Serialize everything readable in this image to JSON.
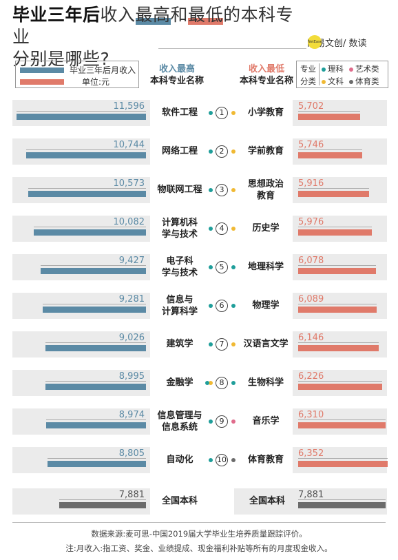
{
  "title": {
    "bold": "毕业三年后",
    "part1": "收入",
    "hl1": "最高",
    "part2": "和",
    "hl2": "最低",
    "part3": "的本科专业",
    "line2": "分别是哪些?"
  },
  "brand": {
    "left": "网易文创",
    "dot": "NetEase",
    "right": "/ 数读"
  },
  "legend": {
    "series_label": "毕业三年后月收入",
    "unit_label": "单位:元"
  },
  "headers": {
    "high_1": "收入最高",
    "high_2": "本科专业名称",
    "low_1": "收入最低",
    "low_2": "本科专业名称"
  },
  "category_legend": {
    "label_1": "专业",
    "label_2": "分类",
    "items": [
      {
        "name": "理科",
        "color": "#1f9e9a"
      },
      {
        "name": "艺术类",
        "color": "#e06c8c"
      },
      {
        "name": "文科",
        "color": "#f0b933"
      },
      {
        "name": "体育类",
        "color": "#6b6b6b"
      }
    ]
  },
  "colors": {
    "high": "#5b8aa5",
    "low": "#e07a6a",
    "national": "#6b6b6b",
    "panel": "#ebebeb"
  },
  "chart_data": {
    "type": "bar",
    "title": "毕业三年后收入最高和最低的本科专业分别是哪些?",
    "unit": "元",
    "ranks": [
      "1",
      "2",
      "3",
      "4",
      "5",
      "6",
      "7",
      "8",
      "9",
      "10"
    ],
    "highest": [
      {
        "name": "软件工程",
        "value": 11596,
        "value_label": "11,596",
        "category": "理科"
      },
      {
        "name": "网络工程",
        "value": 10744,
        "value_label": "10,744",
        "category": "理科"
      },
      {
        "name": "物联网工程",
        "value": 10573,
        "value_label": "10,573",
        "category": "理科"
      },
      {
        "name": "计算机科学与技术",
        "value": 10082,
        "value_label": "10,082",
        "category": "理科"
      },
      {
        "name": "电子科学与技术",
        "value": 9427,
        "value_label": "9,427",
        "category": "理科"
      },
      {
        "name": "信息与计算科学",
        "value": 9281,
        "value_label": "9,281",
        "category": "理科"
      },
      {
        "name": "建筑学",
        "value": 9026,
        "value_label": "9,026",
        "category": "理科"
      },
      {
        "name": "金融学",
        "value": 8995,
        "value_label": "8,995",
        "category": "文科"
      },
      {
        "name": "信息管理与信息系统",
        "value": 8974,
        "value_label": "8,974",
        "category": "理科"
      },
      {
        "name": "自动化",
        "value": 8805,
        "value_label": "8,805",
        "category": "理科"
      }
    ],
    "lowest": [
      {
        "name": "小学教育",
        "value": 5702,
        "value_label": "5,702",
        "category": "文科"
      },
      {
        "name": "学前教育",
        "value": 5746,
        "value_label": "5,746",
        "category": "文科"
      },
      {
        "name": "思想政治教育",
        "value": 5916,
        "value_label": "5,916",
        "category": "文科"
      },
      {
        "name": "历史学",
        "value": 5976,
        "value_label": "5,976",
        "category": "文科"
      },
      {
        "name": "地理科学",
        "value": 6078,
        "value_label": "6,078",
        "category": "理科"
      },
      {
        "name": "物理学",
        "value": 6089,
        "value_label": "6,089",
        "category": "理科"
      },
      {
        "name": "汉语言文学",
        "value": 6146,
        "value_label": "6,146",
        "category": "文科"
      },
      {
        "name": "生物科学",
        "value": 6226,
        "value_label": "6,226",
        "category": "理科"
      },
      {
        "name": "音乐学",
        "value": 6310,
        "value_label": "6,310",
        "category": "艺术类"
      },
      {
        "name": "体育教育",
        "value": 6352,
        "value_label": "6,352",
        "category": "体育类"
      }
    ],
    "national": {
      "name": "全国本科",
      "value": 7881,
      "value_label": "7,881"
    }
  },
  "footer": {
    "source": "数据来源:麦可思-中国2019届大学毕业生培养质量跟踪评价。",
    "note": "注:月收入:指工资、奖金、业绩提成、现金福利补贴等所有的月度现金收入。"
  }
}
